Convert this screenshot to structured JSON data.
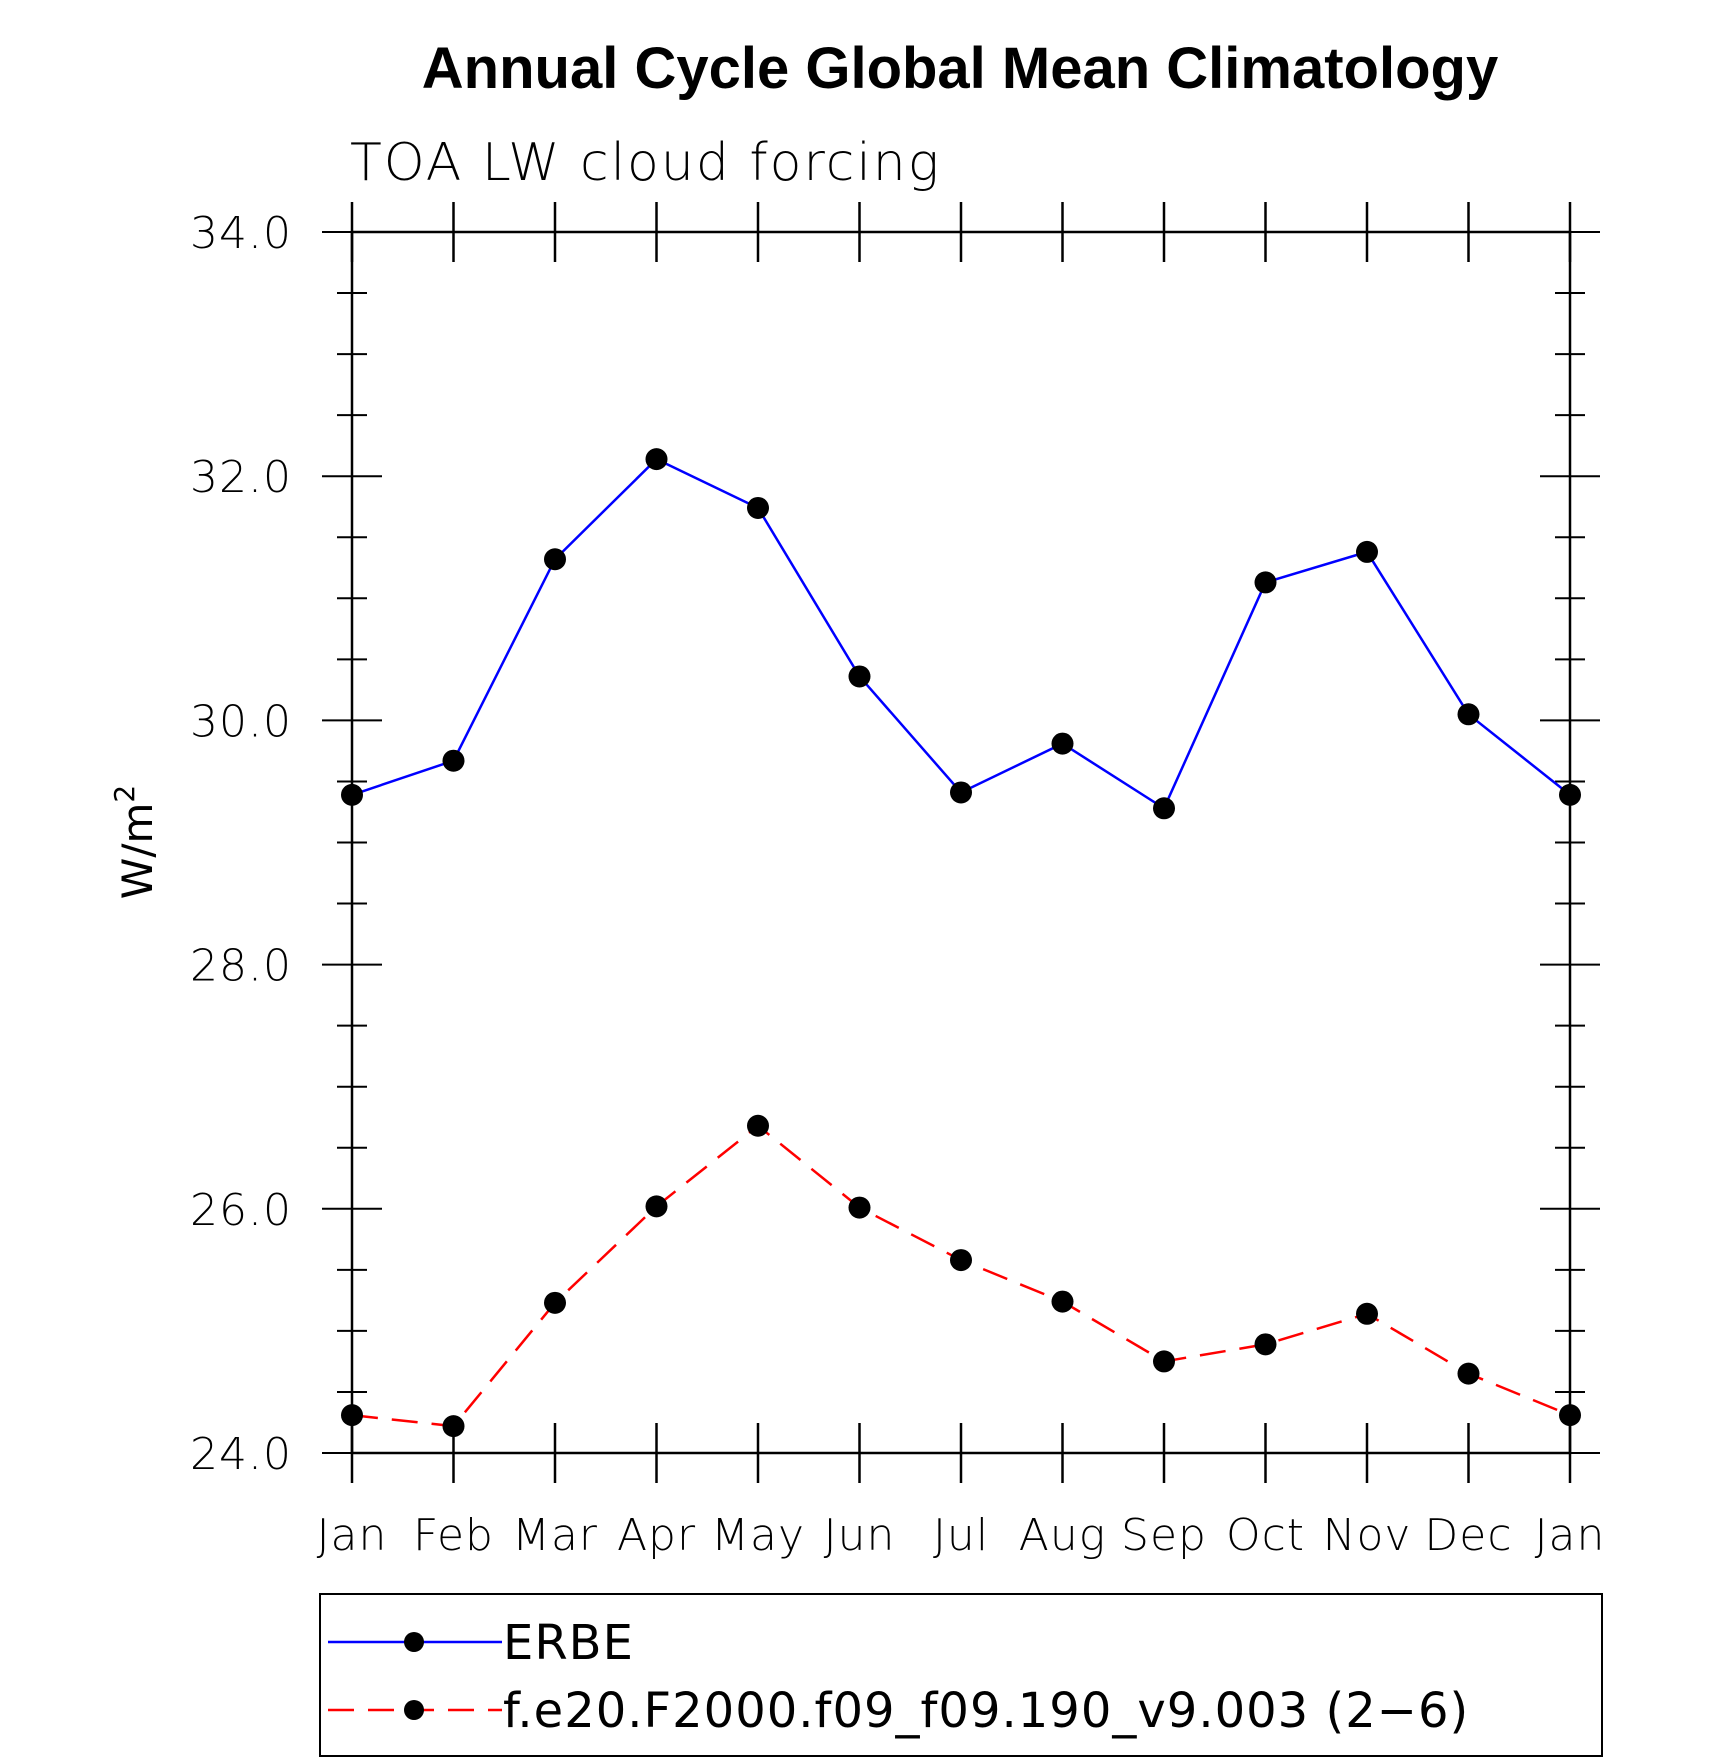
{
  "chart_data": {
    "type": "line",
    "title": "Annual Cycle Global Mean Climatology",
    "subtitle": "TOA LW cloud forcing",
    "ylabel": "W/m",
    "ylabel_sup": "2",
    "xlabel": "",
    "categories": [
      "Jan",
      "Feb",
      "Mar",
      "Apr",
      "May",
      "Jun",
      "Jul",
      "Aug",
      "Sep",
      "Oct",
      "Nov",
      "Dec",
      "Jan"
    ],
    "ylim": [
      24.0,
      34.0
    ],
    "yticks": [
      "24.0",
      "26.0",
      "28.0",
      "30.0",
      "32.0",
      "34.0"
    ],
    "grid": false,
    "legend_position": "bottom",
    "series": [
      {
        "name": "ERBE",
        "color": "#0000ff",
        "line_style": "solid",
        "marker": "circle",
        "values": [
          29.39,
          29.67,
          31.32,
          32.14,
          31.74,
          30.36,
          29.41,
          29.81,
          29.28,
          31.13,
          31.38,
          30.05,
          29.39
        ]
      },
      {
        "name": "f.e20.F2000.f09_f09.190_v9.003 (2−6)",
        "color": "#ff0000",
        "line_style": "dashed",
        "marker": "circle",
        "values": [
          24.31,
          24.22,
          25.23,
          26.02,
          26.68,
          26.01,
          25.58,
          25.24,
          24.75,
          24.89,
          25.14,
          24.65,
          24.31
        ]
      }
    ]
  }
}
